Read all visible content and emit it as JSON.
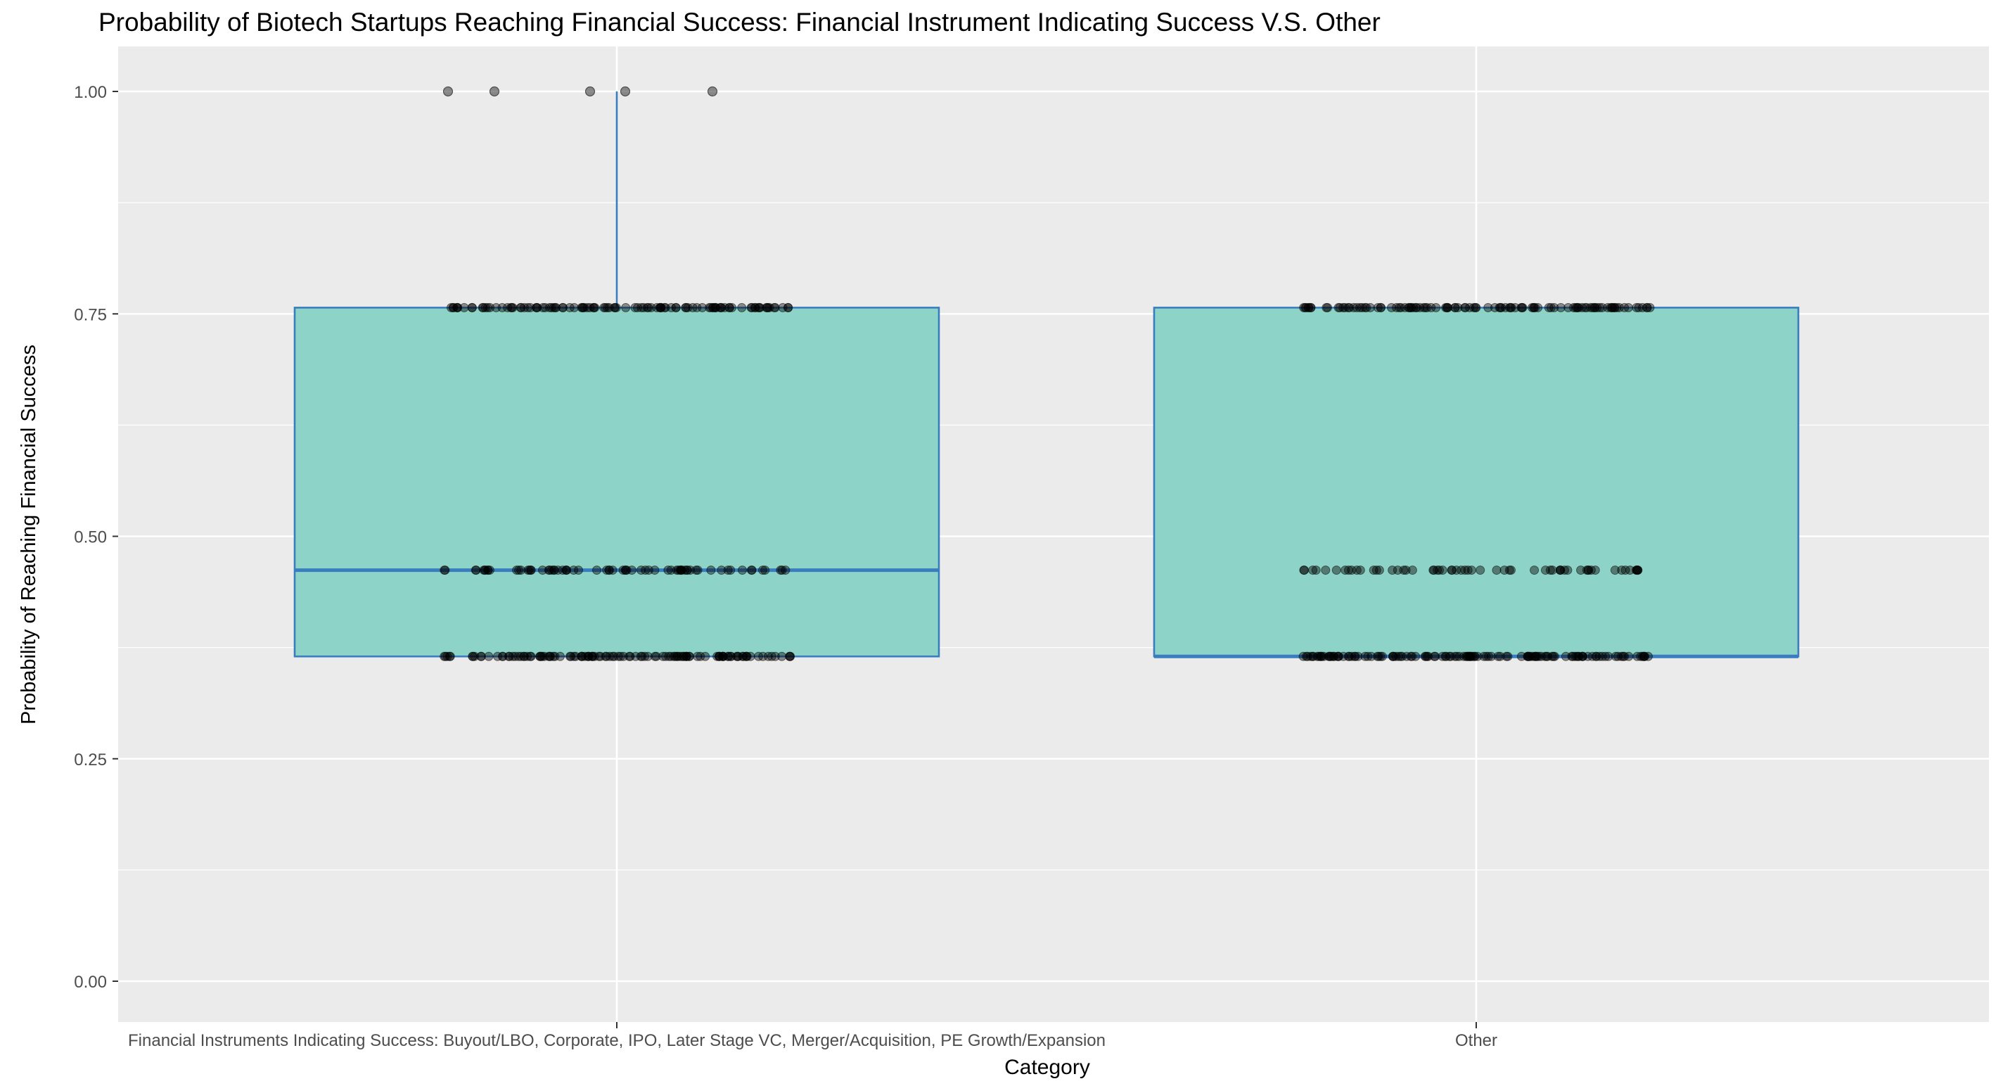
{
  "chart_data": {
    "type": "box",
    "title": "Probability of Biotech Startups Reaching Financial Success: Financial Instrument Indicating Success V.S. Other",
    "xlabel": "Category",
    "ylabel": "Probability of Reaching Financial Success",
    "ylim": [
      -0.04,
      1.05
    ],
    "yticks": [
      0.0,
      0.25,
      0.5,
      0.75,
      1.0
    ],
    "ytick_labels": [
      "0.00",
      "0.25",
      "0.50",
      "0.75",
      "1.00"
    ],
    "grid": true,
    "categories": [
      "Financial Instruments Indicating Success: Buyout/LBO, Corporate, IPO, Later Stage VC, Merger/Acquisition, PE Growth/Expansion",
      "Other"
    ],
    "boxes": [
      {
        "q1": 0.365,
        "median": 0.462,
        "q3": 0.757,
        "whisker_low": 0.365,
        "whisker_high": 1.0,
        "outliers": [
          1.0,
          1.0,
          1.0,
          1.0,
          1.0
        ]
      },
      {
        "q1": 0.365,
        "median": 0.365,
        "q3": 0.757,
        "whisker_low": 0.365,
        "whisker_high": 0.757,
        "outliers": []
      }
    ],
    "point_levels": [
      0.365,
      0.462,
      0.757
    ],
    "colors": {
      "panel": "#EBEBEB",
      "grid": "#FFFFFF",
      "box_fill": "#8DD3C7",
      "box_line": "#3A7DBF",
      "points": "#000000"
    }
  }
}
